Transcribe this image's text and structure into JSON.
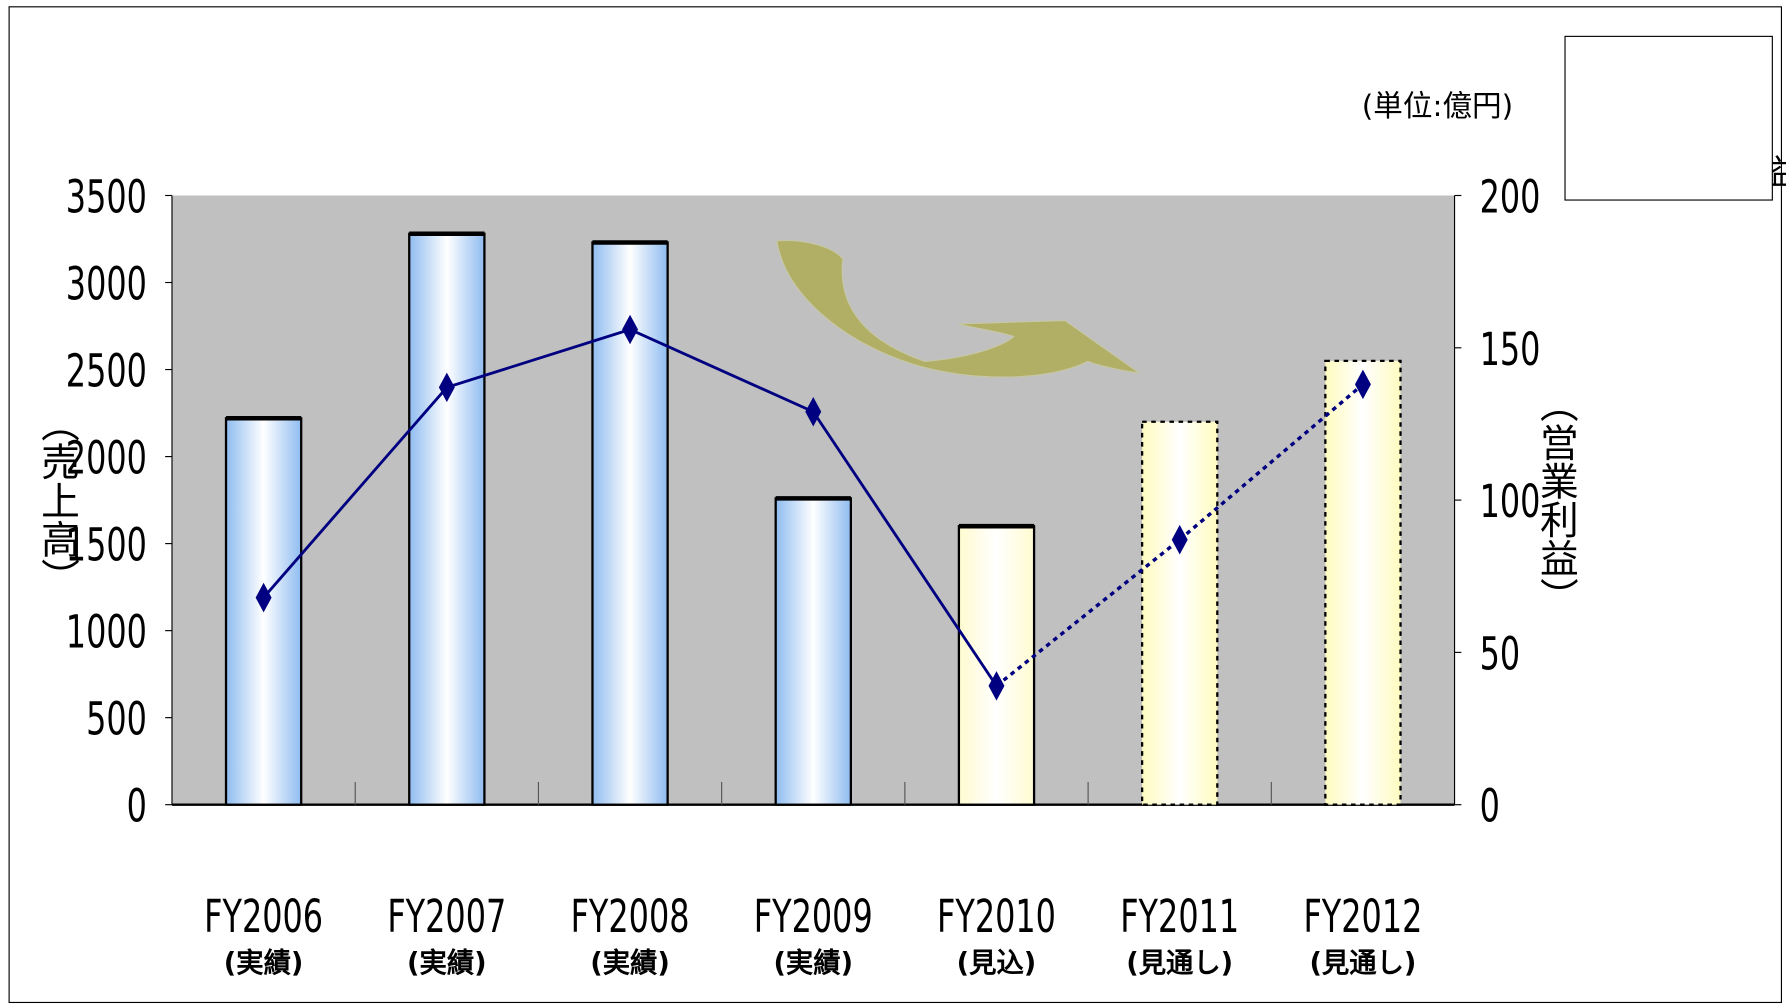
{
  "chart_data": {
    "type": "bar",
    "unit_note": "(単位:億円)",
    "ylabel": "（売上高）",
    "y2label": "（営業利益）",
    "categories": [
      "FY2006",
      "FY2007",
      "FY2008",
      "FY2009",
      "FY2010",
      "FY2011",
      "FY2012"
    ],
    "category_notes": [
      "(実績)",
      "(実績)",
      "(実績)",
      "(実績)",
      "(見込)",
      "(見通し)",
      "(見通し)"
    ],
    "ylim": [
      0,
      3500
    ],
    "yticks": [
      0,
      500,
      1000,
      1500,
      2000,
      2500,
      3000,
      3500
    ],
    "y2lim": [
      0,
      200
    ],
    "y2ticks": [
      0,
      50,
      100,
      150,
      200
    ],
    "background": "#c0c0c0",
    "series": [
      {
        "name": "売上高",
        "type": "bar",
        "values": [
          2220,
          3280,
          3230,
          1760,
          1600,
          2200,
          2550
        ],
        "colors": [
          "#8fbcf0",
          "#8fbcf0",
          "#8fbcf0",
          "#8fbcf0",
          "#fffbd0",
          "#fffbc0",
          "#fffbc0"
        ],
        "border_styles": [
          "solid",
          "solid",
          "solid",
          "solid",
          "solid",
          "dotted",
          "dotted"
        ]
      },
      {
        "name": "営業利益",
        "type": "line",
        "axis": "y2",
        "color": "#000080",
        "values": [
          68,
          137,
          156,
          129,
          39,
          87,
          138
        ],
        "line_styles": [
          "solid",
          "solid",
          "solid",
          "solid",
          "dotted",
          "dotted"
        ]
      }
    ]
  }
}
